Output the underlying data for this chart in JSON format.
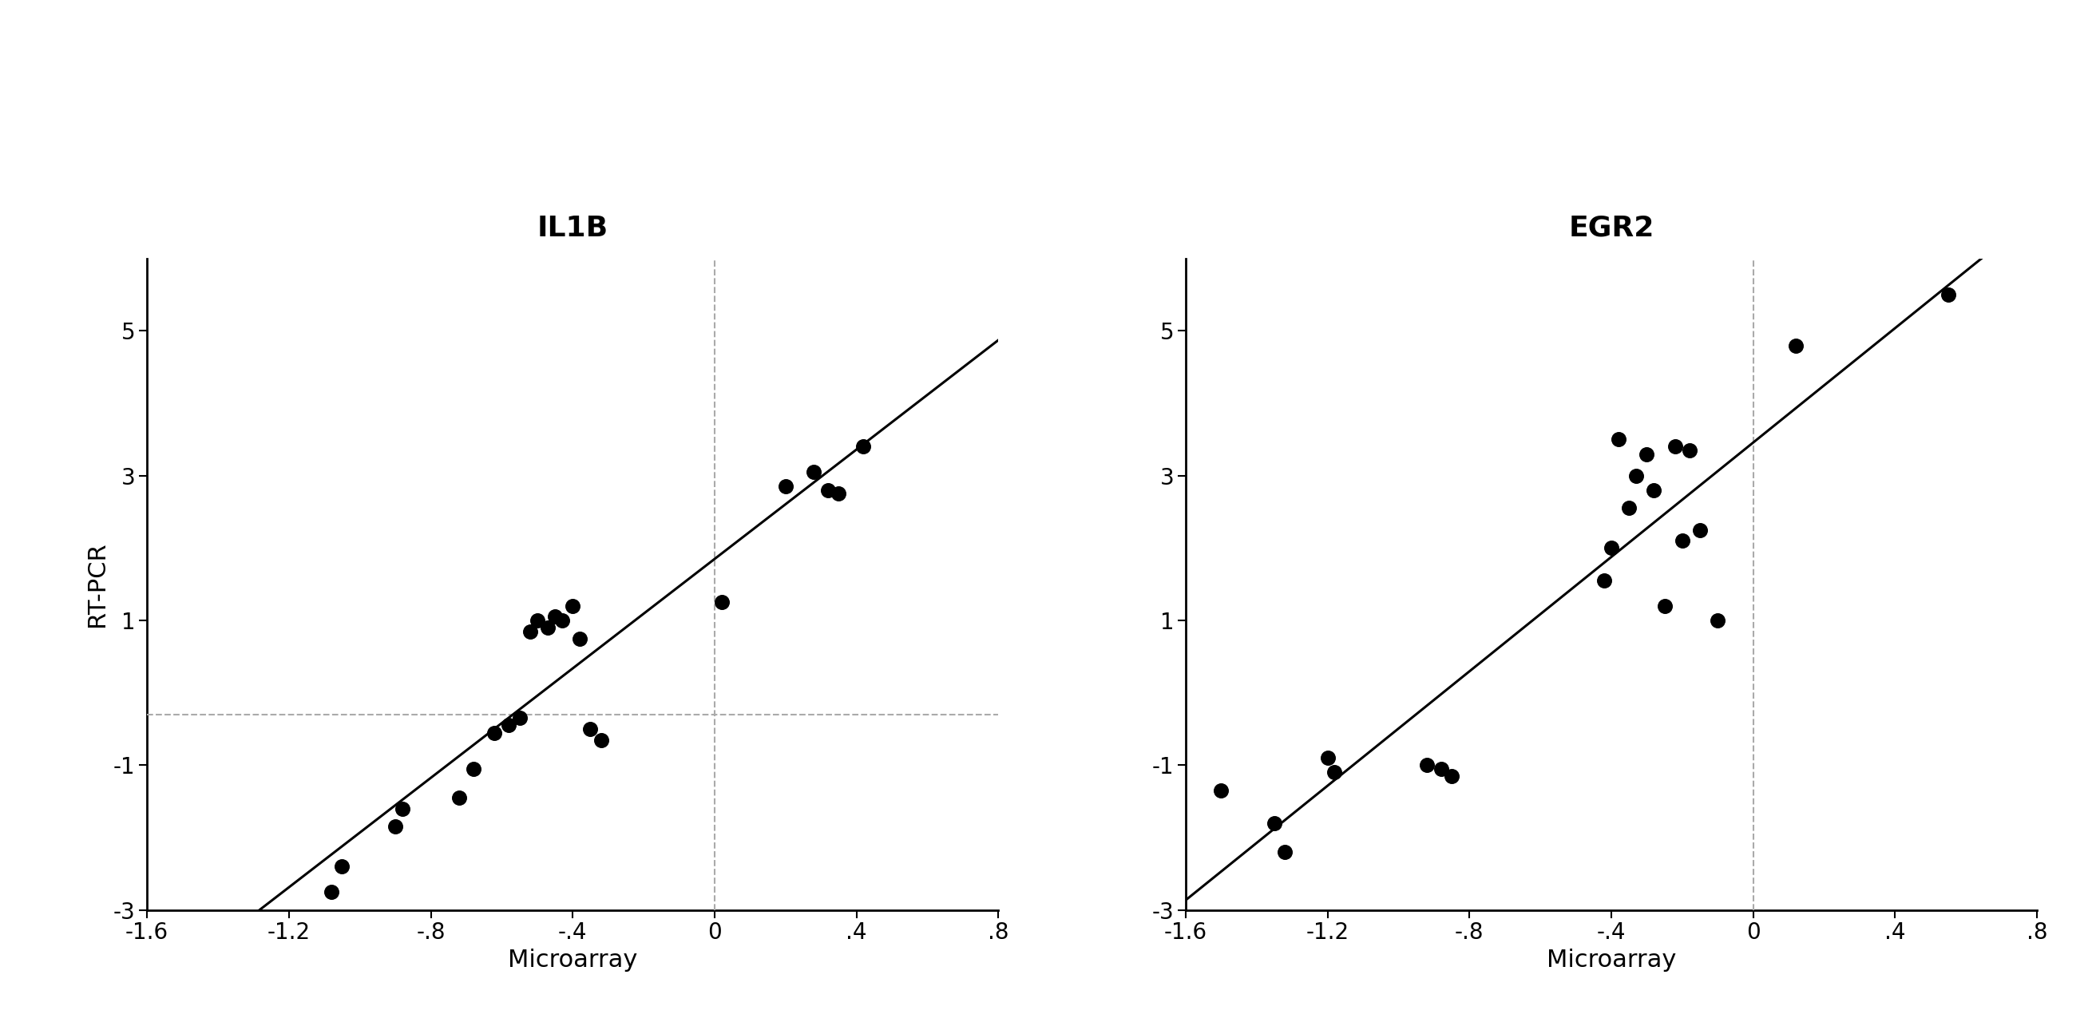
{
  "il1b": {
    "title": "IL1B",
    "x": [
      -1.08,
      -1.05,
      -0.9,
      -0.88,
      -0.72,
      -0.68,
      -0.62,
      -0.58,
      -0.55,
      -0.52,
      -0.5,
      -0.47,
      -0.45,
      -0.43,
      -0.4,
      -0.38,
      -0.35,
      -0.32,
      0.02,
      0.2,
      0.28,
      0.32,
      0.35,
      0.42
    ],
    "y": [
      -2.75,
      -2.4,
      -1.85,
      -1.6,
      -1.45,
      -1.05,
      -0.55,
      -0.45,
      -0.35,
      0.85,
      1.0,
      0.9,
      1.05,
      1.0,
      1.2,
      0.75,
      -0.5,
      -0.65,
      1.25,
      2.85,
      3.05,
      2.8,
      2.75,
      3.4
    ],
    "hline_y": -0.3,
    "vline_x": 0.0,
    "xlabel": "Microarray",
    "ylabel": "RT-PCR",
    "xlim": [
      -1.6,
      0.8
    ],
    "ylim": [
      -3.0,
      6.0
    ],
    "xticks": [
      -1.6,
      -1.2,
      -0.8,
      -0.4,
      0.0,
      0.4,
      0.8
    ],
    "yticks": [
      -3,
      -1,
      1,
      3,
      5
    ],
    "xtick_labels": [
      "-1.6",
      "-1.2",
      "-.8",
      "-.4",
      "0",
      ".4",
      ".8"
    ],
    "ytick_labels": [
      "-3",
      "-1",
      "1",
      "3",
      "5"
    ],
    "line_slope": 4.8,
    "line_intercept": 1.55
  },
  "egr2": {
    "title": "EGR2",
    "x": [
      -1.5,
      -1.35,
      -1.32,
      -1.2,
      -1.18,
      -0.92,
      -0.88,
      -0.85,
      -0.42,
      -0.4,
      -0.38,
      -0.35,
      -0.33,
      -0.3,
      -0.28,
      -0.25,
      -0.22,
      -0.2,
      -0.18,
      -0.15,
      -0.1,
      0.12,
      0.55
    ],
    "y": [
      -1.35,
      -1.8,
      -2.2,
      -0.9,
      -1.1,
      -1.0,
      -1.05,
      -1.15,
      1.55,
      2.0,
      3.5,
      2.55,
      3.0,
      3.3,
      2.8,
      1.2,
      3.4,
      2.1,
      3.35,
      2.25,
      1.0,
      4.8,
      5.5
    ],
    "hline_y": null,
    "vline_x": 0.0,
    "xlabel": "Microarray",
    "ylabel": "",
    "xlim": [
      -1.6,
      0.8
    ],
    "ylim": [
      -3.0,
      6.0
    ],
    "xticks": [
      -1.6,
      -1.2,
      -0.8,
      -0.4,
      0.0,
      0.4,
      0.8
    ],
    "yticks": [
      -3,
      -1,
      1,
      3,
      5
    ],
    "xtick_labels": [
      "-1.6",
      "-1.2",
      "-.8",
      "-.4",
      "0",
      ".4",
      ".8"
    ],
    "ytick_labels": [
      "-3",
      "-1",
      "1",
      "3",
      "5"
    ],
    "line_slope": 4.35,
    "line_intercept": 0.65
  },
  "background_color": "#ffffff",
  "dot_color": "#000000",
  "line_color": "#000000",
  "dashed_color": "#aaaaaa",
  "dot_size": 160,
  "title_fontsize": 26,
  "label_fontsize": 22,
  "tick_fontsize": 20
}
